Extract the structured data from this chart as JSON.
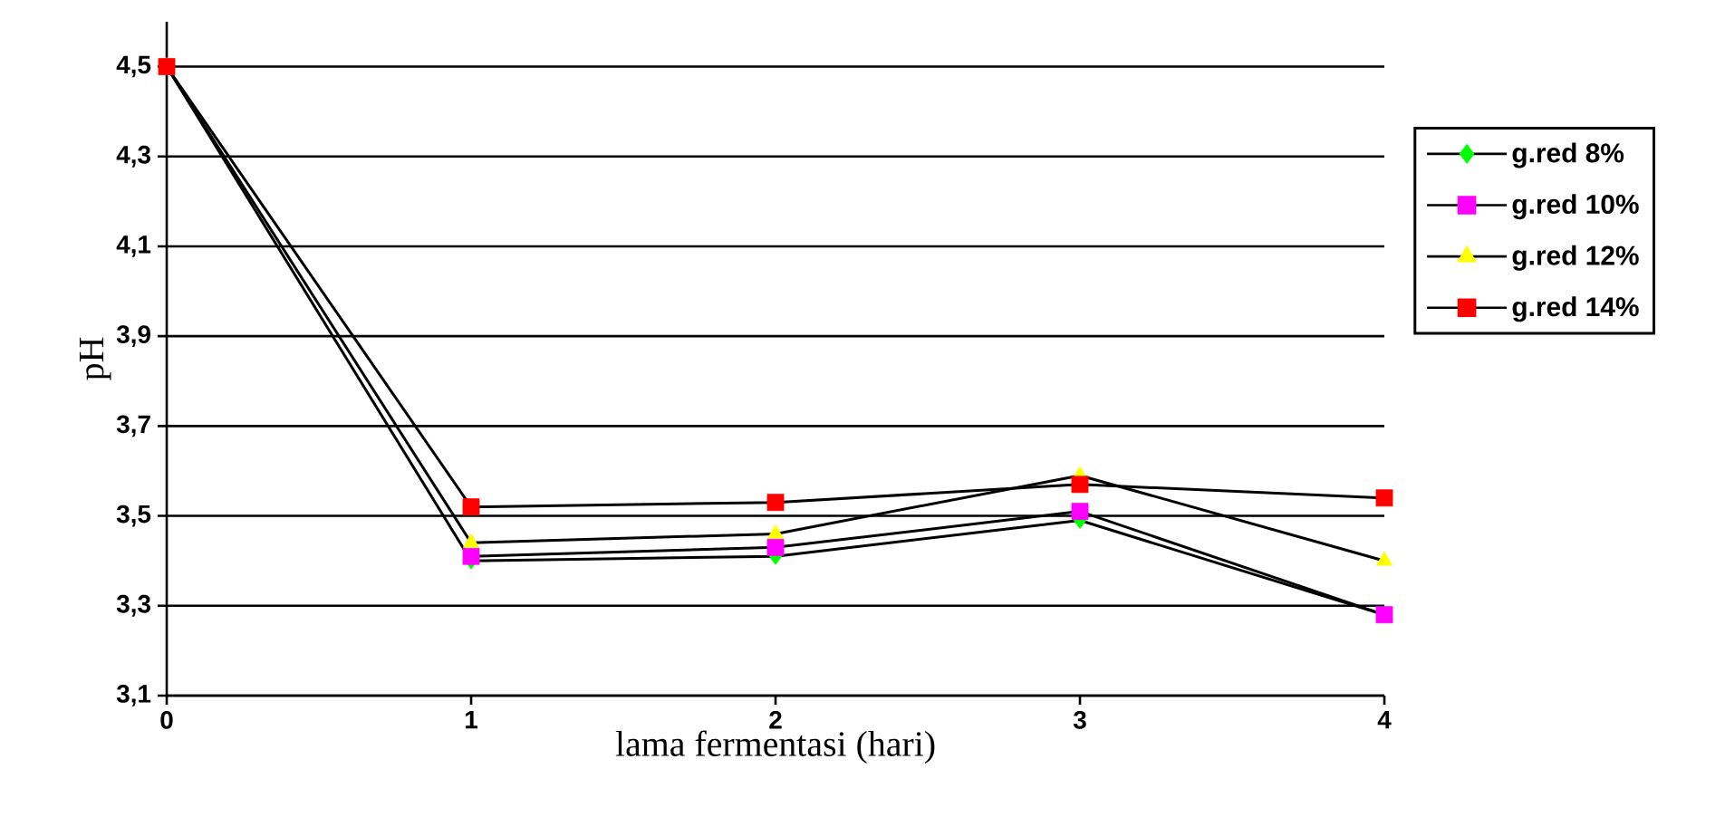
{
  "chart_data": {
    "type": "line",
    "xlabel": "lama fermentasi (hari)",
    "ylabel": "pH",
    "x": [
      0,
      1,
      2,
      3,
      4
    ],
    "series": [
      {
        "name": "g.red 8%",
        "color": "#00ff00",
        "marker": "diamond",
        "values": [
          4.5,
          3.4,
          3.41,
          3.49,
          3.28
        ]
      },
      {
        "name": "g.red 10%",
        "color": "#ff00ff",
        "marker": "square",
        "values": [
          null,
          3.41,
          3.43,
          3.51,
          3.28
        ]
      },
      {
        "name": "g.red 12%",
        "color": "#ffff00",
        "marker": "triangle",
        "values": [
          4.5,
          3.44,
          3.46,
          3.59,
          3.4
        ]
      },
      {
        "name": "g.red 14%",
        "color": "#ff0000",
        "marker": "square",
        "values": [
          4.5,
          3.52,
          3.53,
          3.57,
          3.54
        ]
      }
    ],
    "xlim": [
      0,
      4
    ],
    "xticks": [
      0,
      1,
      2,
      3,
      4
    ],
    "ylim": [
      3.1,
      4.6
    ],
    "yticks": [
      {
        "value": 3.1,
        "label": "3,1"
      },
      {
        "value": 3.3,
        "label": "3,3"
      },
      {
        "value": 3.5,
        "label": "3,5"
      },
      {
        "value": 3.7,
        "label": "3,7"
      },
      {
        "value": 3.9,
        "label": "3,9"
      },
      {
        "value": 4.1,
        "label": "4,1"
      },
      {
        "value": 4.3,
        "label": "4,3"
      },
      {
        "value": 4.5,
        "label": "4,5"
      }
    ],
    "grid": "y",
    "legend": "right",
    "line_style": "solid"
  }
}
